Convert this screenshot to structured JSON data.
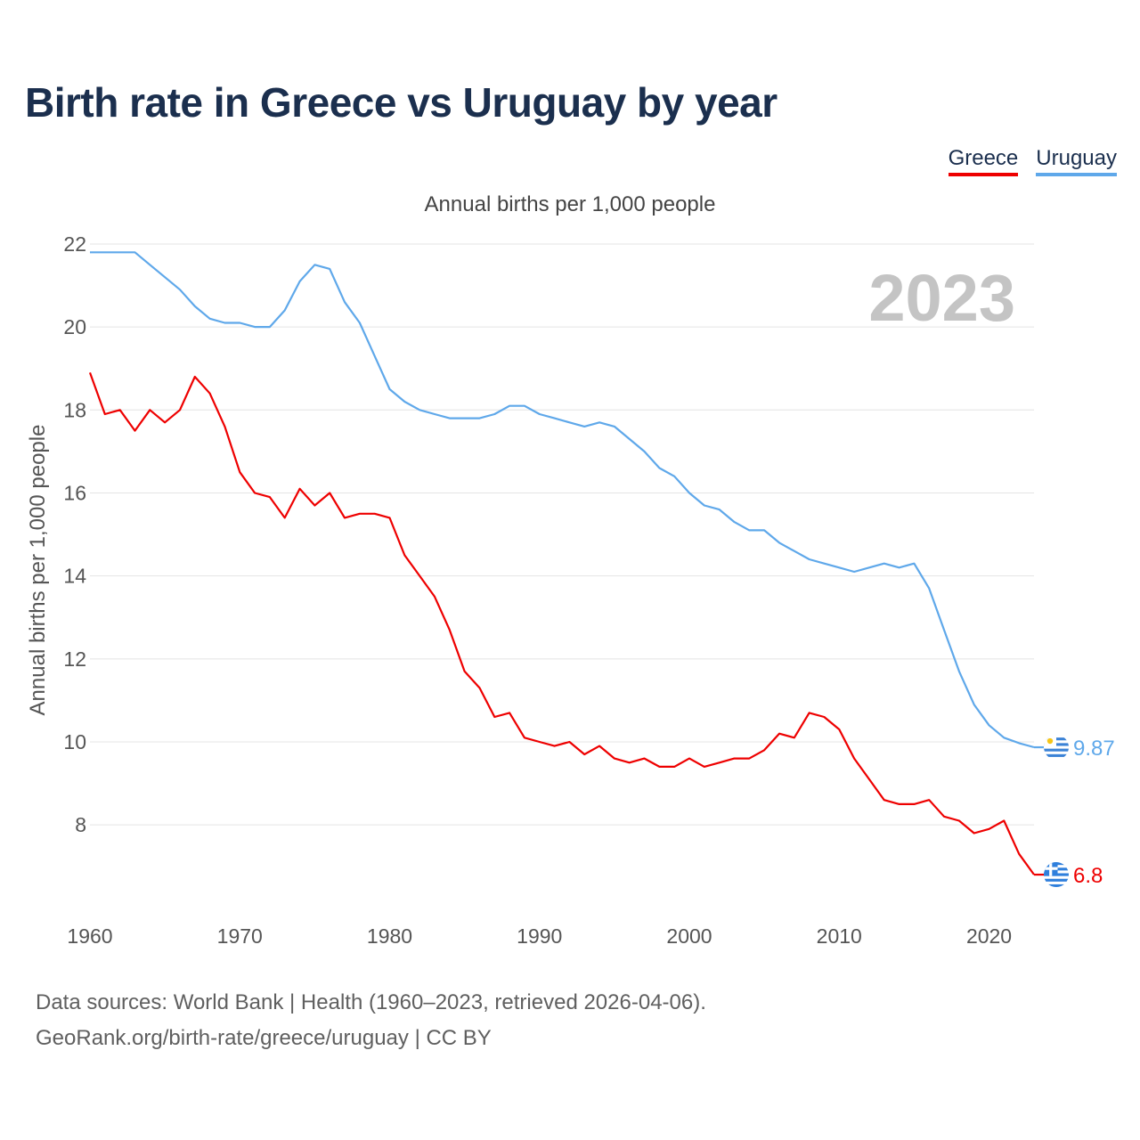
{
  "title": "Birth rate in Greece vs Uruguay by year",
  "legend": {
    "greece": "Greece",
    "uruguay": "Uruguay"
  },
  "subtitle": "Annual births per 1,000 people",
  "year_watermark": "2023",
  "source_line1": "Data sources: World Bank | Health (1960–2023, retrieved 2026-04-06).",
  "source_line2": "GeoRank.org/birth-rate/greece/uruguay | CC BY",
  "colors": {
    "greece": "#ee0000",
    "uruguay": "#5fa8ea",
    "title": "#1b2f4e"
  },
  "chart_data": {
    "type": "line",
    "title": "Birth rate in Greece vs Uruguay by year",
    "xlabel": "",
    "ylabel": "Annual births per 1,000 people",
    "xlim": [
      1960,
      2023
    ],
    "ylim": [
      6.2,
      22.3
    ],
    "x_ticks": [
      1960,
      1970,
      1980,
      1990,
      2000,
      2010,
      2020
    ],
    "y_ticks": [
      8,
      10,
      12,
      14,
      16,
      18,
      20,
      22
    ],
    "grid": true,
    "legend_position": "top-right",
    "x": [
      1960,
      1961,
      1962,
      1963,
      1964,
      1965,
      1966,
      1967,
      1968,
      1969,
      1970,
      1971,
      1972,
      1973,
      1974,
      1975,
      1976,
      1977,
      1978,
      1979,
      1980,
      1981,
      1982,
      1983,
      1984,
      1985,
      1986,
      1987,
      1988,
      1989,
      1990,
      1991,
      1992,
      1993,
      1994,
      1995,
      1996,
      1997,
      1998,
      1999,
      2000,
      2001,
      2002,
      2003,
      2004,
      2005,
      2006,
      2007,
      2008,
      2009,
      2010,
      2011,
      2012,
      2013,
      2014,
      2015,
      2016,
      2017,
      2018,
      2019,
      2020,
      2021,
      2022,
      2023
    ],
    "series": [
      {
        "name": "Greece",
        "end_label": "6.8",
        "values": [
          18.9,
          17.9,
          18.0,
          17.5,
          18.0,
          17.7,
          18.0,
          18.8,
          18.4,
          17.6,
          16.5,
          16.0,
          15.9,
          15.4,
          16.1,
          15.7,
          16.0,
          15.4,
          15.5,
          15.5,
          15.4,
          14.5,
          14.0,
          13.5,
          12.7,
          11.7,
          11.3,
          10.6,
          10.7,
          10.1,
          10.0,
          9.9,
          10.0,
          9.7,
          9.9,
          9.6,
          9.5,
          9.6,
          9.4,
          9.4,
          9.6,
          9.4,
          9.5,
          9.6,
          9.6,
          9.8,
          10.2,
          10.1,
          10.7,
          10.6,
          10.3,
          9.6,
          9.1,
          8.6,
          8.5,
          8.5,
          8.6,
          8.2,
          8.1,
          7.8,
          7.9,
          8.1,
          7.3,
          6.8
        ]
      },
      {
        "name": "Uruguay",
        "end_label": "9.87",
        "values": [
          21.8,
          21.8,
          21.8,
          21.8,
          21.5,
          21.2,
          20.9,
          20.5,
          20.2,
          20.1,
          20.1,
          20.0,
          20.0,
          20.4,
          21.1,
          21.5,
          21.4,
          20.6,
          20.1,
          19.3,
          18.5,
          18.2,
          18.0,
          17.9,
          17.8,
          17.8,
          17.8,
          17.9,
          18.1,
          18.1,
          17.9,
          17.8,
          17.7,
          17.6,
          17.7,
          17.6,
          17.3,
          17.0,
          16.6,
          16.4,
          16.0,
          15.7,
          15.6,
          15.3,
          15.1,
          15.1,
          14.8,
          14.6,
          14.4,
          14.3,
          14.2,
          14.1,
          14.2,
          14.3,
          14.2,
          14.3,
          13.7,
          12.7,
          11.7,
          10.9,
          10.4,
          10.1,
          9.97,
          9.87
        ]
      }
    ]
  }
}
